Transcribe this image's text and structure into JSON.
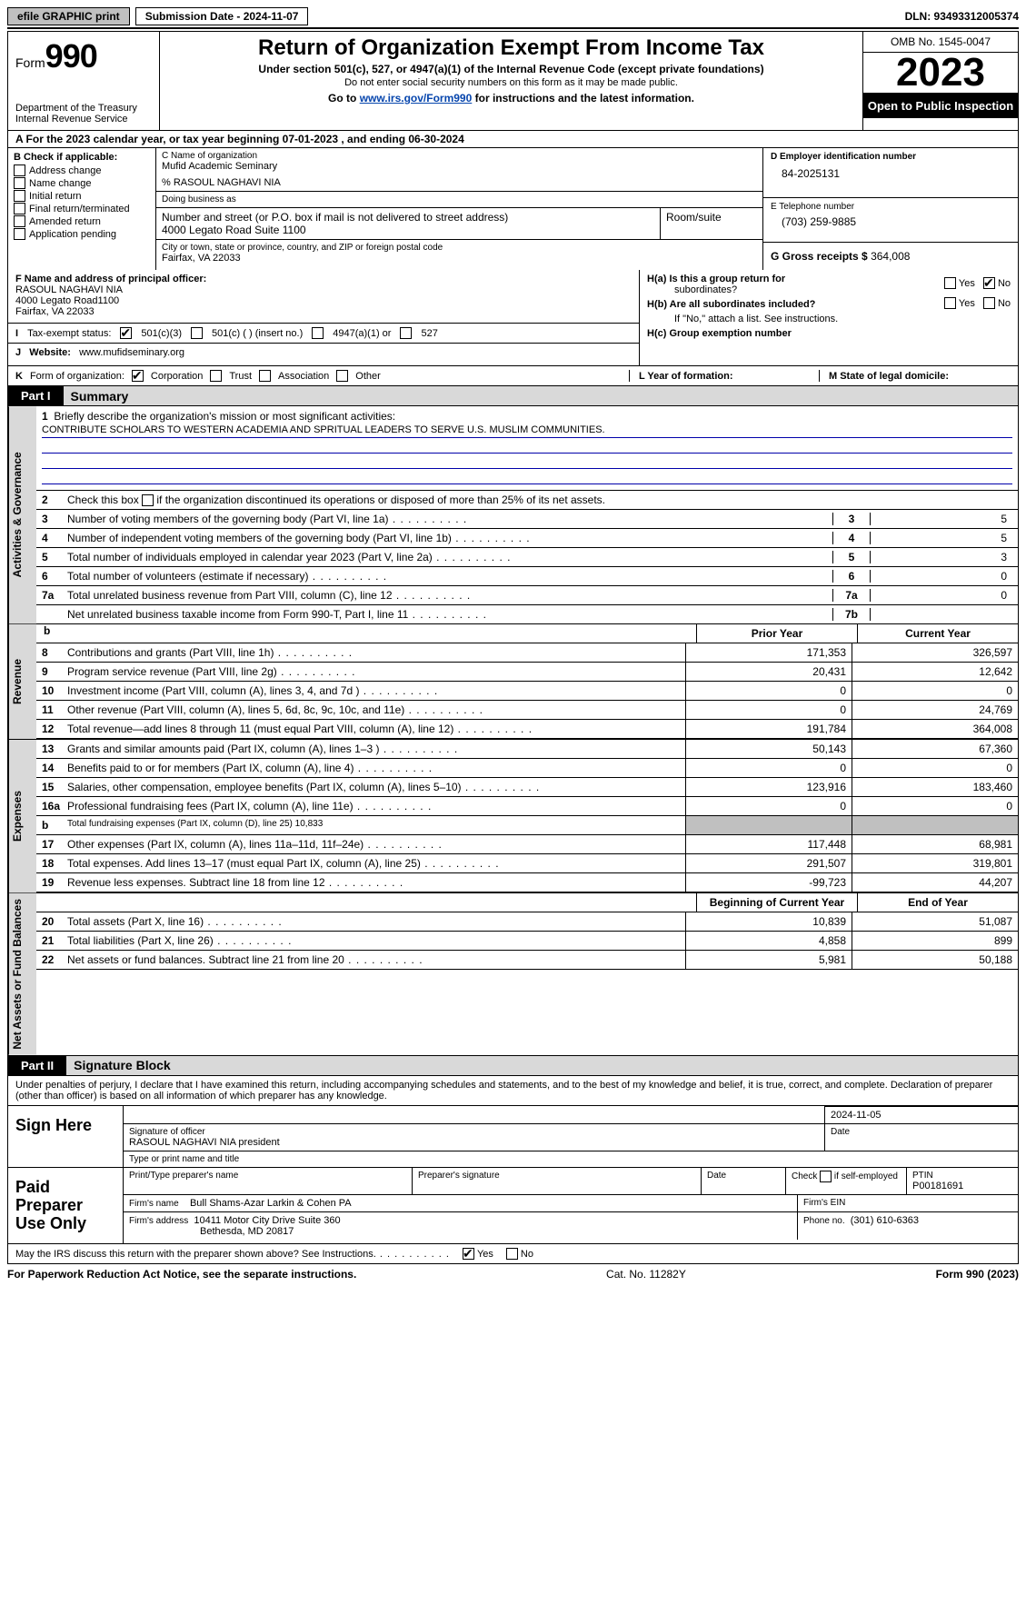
{
  "topbar": {
    "efile": "efile GRAPHIC print",
    "submission": "Submission Date - 2024-11-07",
    "dln": "DLN: 93493312005374"
  },
  "header": {
    "form_label": "Form",
    "form_num": "990",
    "title": "Return of Organization Exempt From Income Tax",
    "sub": "Under section 501(c), 527, or 4947(a)(1) of the Internal Revenue Code (except private foundations)",
    "note": "Do not enter social security numbers on this form as it may be made public.",
    "go_pre": "Go to ",
    "go_url": "www.irs.gov/Form990",
    "go_post": " for instructions and the latest information.",
    "dept": "Department of the Treasury",
    "irs": "Internal Revenue Service",
    "omb": "OMB No. 1545-0047",
    "year": "2023",
    "open": "Open to Public Inspection"
  },
  "rowA": "A For the 2023 calendar year, or tax year beginning 07-01-2023   , and ending 06-30-2024",
  "colB": {
    "title": "B Check if applicable:",
    "opts": [
      "Address change",
      "Name change",
      "Initial return",
      "Final return/terminated",
      "Amended return",
      "Application pending"
    ]
  },
  "boxC": {
    "hint_name": "C Name of organization",
    "name": "Mufid Academic Seminary",
    "care": "% RASOUL NAGHAVI NIA",
    "dba_hint": "Doing business as",
    "addr_hint": "Number and street (or P.O. box if mail is not delivered to street address)",
    "addr": "4000 Legato Road Suite 1100",
    "room_hint": "Room/suite",
    "city_hint": "City or town, state or province, country, and ZIP or foreign postal code",
    "city": "Fairfax, VA  22033"
  },
  "boxD": {
    "hint": "D Employer identification number",
    "val": "84-2025131"
  },
  "boxE": {
    "hint": "E Telephone number",
    "val": "(703) 259-9885"
  },
  "boxG": {
    "label": "G Gross receipts $",
    "val": "364,008"
  },
  "boxF": {
    "hint": "F  Name and address of principal officer:",
    "l1": "RASOUL NAGHAVI NIA",
    "l2": "4000 Legato Road1100",
    "l3": "Fairfax, VA  22033"
  },
  "boxH": {
    "a": "H(a)  Is this a group return for",
    "a2": "subordinates?",
    "b": "H(b)  Are all subordinates included?",
    "b2": "If \"No,\" attach a list. See instructions.",
    "c": "H(c)  Group exemption number"
  },
  "rowI": {
    "lead": "I",
    "label": "Tax-exempt status:",
    "o1": "501(c)(3)",
    "o2": "501(c) (   ) (insert no.)",
    "o3": "4947(a)(1) or",
    "o4": "527"
  },
  "rowJ": {
    "lead": "J",
    "label": "Website:",
    "val": "www.mufidseminary.org"
  },
  "rowK": {
    "lead": "K",
    "label": "Form of organization:",
    "opts": [
      "Corporation",
      "Trust",
      "Association",
      "Other"
    ],
    "l_label": "L Year of formation:",
    "m_label": "M State of legal domicile:"
  },
  "partI": {
    "tag": "Part I",
    "title": "Summary"
  },
  "gov": {
    "l1": "Briefly describe the organization's mission or most significant activities:",
    "mission": "CONTRIBUTE SCHOLARS TO WESTERN ACADEMIA AND SPRITUAL LEADERS TO SERVE U.S. MUSLIM COMMUNITIES.",
    "l2": "Check this box        if the organization discontinued its operations or disposed of more than 25% of its net assets.",
    "rows": [
      {
        "n": "3",
        "t": "Number of voting members of the governing body (Part VI, line 1a)",
        "k": "3",
        "v": "5"
      },
      {
        "n": "4",
        "t": "Number of independent voting members of the governing body (Part VI, line 1b)",
        "k": "4",
        "v": "5"
      },
      {
        "n": "5",
        "t": "Total number of individuals employed in calendar year 2023 (Part V, line 2a)",
        "k": "5",
        "v": "3"
      },
      {
        "n": "6",
        "t": "Total number of volunteers (estimate if necessary)",
        "k": "6",
        "v": "0"
      },
      {
        "n": "7a",
        "t": "Total unrelated business revenue from Part VIII, column (C), line 12",
        "k": "7a",
        "v": "0"
      },
      {
        "n": "",
        "t": "Net unrelated business taxable income from Form 990-T, Part I, line 11",
        "k": "7b",
        "v": ""
      }
    ]
  },
  "hdr_py": "Prior Year",
  "hdr_cy": "Current Year",
  "revenue": [
    {
      "n": "8",
      "t": "Contributions and grants (Part VIII, line 1h)",
      "p": "171,353",
      "c": "326,597"
    },
    {
      "n": "9",
      "t": "Program service revenue (Part VIII, line 2g)",
      "p": "20,431",
      "c": "12,642"
    },
    {
      "n": "10",
      "t": "Investment income (Part VIII, column (A), lines 3, 4, and 7d )",
      "p": "0",
      "c": "0"
    },
    {
      "n": "11",
      "t": "Other revenue (Part VIII, column (A), lines 5, 6d, 8c, 9c, 10c, and 11e)",
      "p": "0",
      "c": "24,769"
    },
    {
      "n": "12",
      "t": "Total revenue—add lines 8 through 11 (must equal Part VIII, column (A), line 12)",
      "p": "191,784",
      "c": "364,008"
    }
  ],
  "expenses": [
    {
      "n": "13",
      "t": "Grants and similar amounts paid (Part IX, column (A), lines 1–3 )",
      "p": "50,143",
      "c": "67,360"
    },
    {
      "n": "14",
      "t": "Benefits paid to or for members (Part IX, column (A), line 4)",
      "p": "0",
      "c": "0"
    },
    {
      "n": "15",
      "t": "Salaries, other compensation, employee benefits (Part IX, column (A), lines 5–10)",
      "p": "123,916",
      "c": "183,460"
    },
    {
      "n": "16a",
      "t": "Professional fundraising fees (Part IX, column (A), line 11e)",
      "p": "0",
      "c": "0"
    },
    {
      "n": "b",
      "t": "Total fundraising expenses (Part IX, column (D), line 25) 10,833",
      "shade": true
    },
    {
      "n": "17",
      "t": "Other expenses (Part IX, column (A), lines 11a–11d, 11f–24e)",
      "p": "117,448",
      "c": "68,981"
    },
    {
      "n": "18",
      "t": "Total expenses. Add lines 13–17 (must equal Part IX, column (A), line 25)",
      "p": "291,507",
      "c": "319,801"
    },
    {
      "n": "19",
      "t": "Revenue less expenses. Subtract line 18 from line 12",
      "p": "-99,723",
      "c": "44,207"
    }
  ],
  "hdr_boy": "Beginning of Current Year",
  "hdr_eoy": "End of Year",
  "net": [
    {
      "n": "20",
      "t": "Total assets (Part X, line 16)",
      "p": "10,839",
      "c": "51,087"
    },
    {
      "n": "21",
      "t": "Total liabilities (Part X, line 26)",
      "p": "4,858",
      "c": "899"
    },
    {
      "n": "22",
      "t": "Net assets or fund balances. Subtract line 21 from line 20",
      "p": "5,981",
      "c": "50,188"
    }
  ],
  "partII": {
    "tag": "Part II",
    "title": "Signature Block"
  },
  "perjury": "Under penalties of perjury, I declare that I have examined this return, including accompanying schedules and statements, and to the best of my knowledge and belief, it is true, correct, and complete. Declaration of preparer (other than officer) is based on all information of which preparer has any knowledge.",
  "sign": {
    "side": "Sign Here",
    "date": "2024-11-05",
    "sig_lbl": "Signature of officer",
    "date_lbl": "Date",
    "officer": "RASOUL NAGHAVI NIA  president",
    "type_lbl": "Type or print name and title"
  },
  "paid": {
    "side": "Paid Preparer Use Only",
    "h1": "Print/Type preparer's name",
    "h2": "Preparer's signature",
    "h3": "Date",
    "h4_pre": "Check",
    "h4_post": "if self-employed",
    "ptin_lbl": "PTIN",
    "ptin": "P00181691",
    "firm_lbl": "Firm's name",
    "firm": "Bull Shams-Azar Larkin & Cohen PA",
    "ein_lbl": "Firm's EIN",
    "addr_lbl": "Firm's address",
    "addr1": "10411 Motor City Drive Suite 360",
    "addr2": "Bethesda, MD  20817",
    "phone_lbl": "Phone no.",
    "phone": "(301) 610-6363"
  },
  "discuss": "May the IRS discuss this return with the preparer shown above? See Instructions.",
  "footer": {
    "l": "For Paperwork Reduction Act Notice, see the separate instructions.",
    "m": "Cat. No. 11282Y",
    "r": "Form 990 (2023)"
  },
  "vtabs": {
    "gov": "Activities & Governance",
    "rev": "Revenue",
    "exp": "Expenses",
    "net": "Net Assets or Fund Balances"
  },
  "yes": "Yes",
  "no": "No"
}
